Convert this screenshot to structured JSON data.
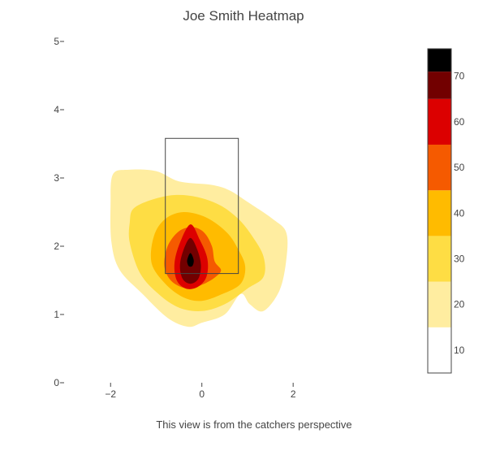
{
  "chart_data": {
    "type": "heatmap",
    "title": "Joe Smith Heatmap",
    "annotation": "This view is from the catchers perspective",
    "xlim": [
      -3.0,
      4.7
    ],
    "ylim": [
      0,
      5
    ],
    "x_ticks": [
      -2,
      0,
      2
    ],
    "x_tick_labels": [
      "−2",
      "0",
      "2"
    ],
    "y_ticks": [
      0,
      1,
      2,
      3,
      4,
      5
    ],
    "y_tick_labels": [
      "0",
      "1",
      "2",
      "3",
      "4",
      "5"
    ],
    "grid": false,
    "strike_zone": {
      "x0": -0.8,
      "x1": 0.8,
      "y0": 1.6,
      "y1": 3.58
    },
    "peak": {
      "x": -0.25,
      "y": 1.78
    },
    "colorbar": {
      "min": 5,
      "max": 76,
      "ticks": [
        10,
        20,
        30,
        40,
        50,
        60,
        70
      ],
      "tick_labels": [
        "10",
        "20",
        "30",
        "40",
        "50",
        "60",
        "70"
      ],
      "bands": [
        {
          "from": 5,
          "to": 15,
          "color": "#ffffff"
        },
        {
          "from": 15,
          "to": 25,
          "color": "#ffeda0"
        },
        {
          "from": 25,
          "to": 35,
          "color": "#fedd44"
        },
        {
          "from": 35,
          "to": 45,
          "color": "#ffbb00"
        },
        {
          "from": 45,
          "to": 55,
          "color": "#f55a00"
        },
        {
          "from": 55,
          "to": 65,
          "color": "#dc0000"
        },
        {
          "from": 65,
          "to": 71,
          "color": "#720000"
        },
        {
          "from": 71,
          "to": 76,
          "color": "#000000"
        }
      ]
    },
    "contours": [
      {
        "level": 15,
        "color": "#ffeda0",
        "points": [
          [
            -1.95,
            3.05
          ],
          [
            -1.6,
            3.12
          ],
          [
            -1.0,
            3.1
          ],
          [
            -0.5,
            2.95
          ],
          [
            0.2,
            2.9
          ],
          [
            0.6,
            2.82
          ],
          [
            1.0,
            2.65
          ],
          [
            1.55,
            2.4
          ],
          [
            1.85,
            2.2
          ],
          [
            1.85,
            1.8
          ],
          [
            1.7,
            1.35
          ],
          [
            1.35,
            1.05
          ],
          [
            1.05,
            1.15
          ],
          [
            0.85,
            1.3
          ],
          [
            0.5,
            1.0
          ],
          [
            0.0,
            0.88
          ],
          [
            -0.3,
            0.82
          ],
          [
            -0.75,
            0.95
          ],
          [
            -1.3,
            1.3
          ],
          [
            -1.8,
            1.65
          ],
          [
            -1.98,
            2.05
          ],
          [
            -2.0,
            2.6
          ]
        ]
      },
      {
        "level": 25,
        "color": "#fedd44",
        "points": [
          [
            -1.5,
            2.55
          ],
          [
            -1.1,
            2.68
          ],
          [
            -0.6,
            2.75
          ],
          [
            -0.1,
            2.72
          ],
          [
            0.4,
            2.6
          ],
          [
            0.8,
            2.4
          ],
          [
            1.1,
            2.15
          ],
          [
            1.35,
            1.85
          ],
          [
            1.35,
            1.55
          ],
          [
            1.0,
            1.38
          ],
          [
            0.5,
            1.15
          ],
          [
            0.0,
            1.05
          ],
          [
            -0.5,
            1.1
          ],
          [
            -0.95,
            1.3
          ],
          [
            -1.35,
            1.6
          ],
          [
            -1.58,
            2.05
          ],
          [
            -1.58,
            2.35
          ]
        ]
      },
      {
        "level": 35,
        "color": "#ffbb00",
        "points": [
          [
            -1.05,
            2.15
          ],
          [
            -0.8,
            2.4
          ],
          [
            -0.4,
            2.5
          ],
          [
            0.1,
            2.42
          ],
          [
            0.55,
            2.2
          ],
          [
            0.8,
            1.95
          ],
          [
            0.95,
            1.7
          ],
          [
            0.85,
            1.45
          ],
          [
            0.45,
            1.3
          ],
          [
            0.0,
            1.2
          ],
          [
            -0.4,
            1.25
          ],
          [
            -0.8,
            1.45
          ],
          [
            -1.1,
            1.75
          ]
        ]
      },
      {
        "level": 45,
        "color": "#f55a00",
        "points": [
          [
            -0.75,
            2.0
          ],
          [
            -0.5,
            2.22
          ],
          [
            -0.2,
            2.28
          ],
          [
            0.05,
            2.2
          ],
          [
            0.22,
            2.0
          ],
          [
            0.28,
            1.78
          ],
          [
            0.42,
            1.65
          ],
          [
            0.3,
            1.55
          ],
          [
            0.05,
            1.45
          ],
          [
            -0.3,
            1.38
          ],
          [
            -0.65,
            1.48
          ],
          [
            -0.82,
            1.7
          ]
        ]
      },
      {
        "level": 55,
        "color": "#dc0000",
        "points": [
          [
            -0.25,
            2.32
          ],
          [
            -0.05,
            2.1
          ],
          [
            0.12,
            1.82
          ],
          [
            0.1,
            1.55
          ],
          [
            -0.1,
            1.4
          ],
          [
            -0.35,
            1.38
          ],
          [
            -0.55,
            1.5
          ],
          [
            -0.6,
            1.75
          ],
          [
            -0.48,
            2.05
          ]
        ]
      },
      {
        "level": 65,
        "color": "#720000",
        "points": [
          [
            -0.25,
            2.12
          ],
          [
            -0.1,
            1.95
          ],
          [
            -0.02,
            1.72
          ],
          [
            -0.08,
            1.52
          ],
          [
            -0.25,
            1.45
          ],
          [
            -0.42,
            1.52
          ],
          [
            -0.48,
            1.72
          ],
          [
            -0.4,
            1.95
          ]
        ]
      },
      {
        "level": 71,
        "color": "#000000",
        "points": [
          [
            -0.25,
            1.9
          ],
          [
            -0.18,
            1.8
          ],
          [
            -0.2,
            1.72
          ],
          [
            -0.25,
            1.7
          ],
          [
            -0.3,
            1.72
          ],
          [
            -0.32,
            1.8
          ]
        ]
      }
    ]
  }
}
